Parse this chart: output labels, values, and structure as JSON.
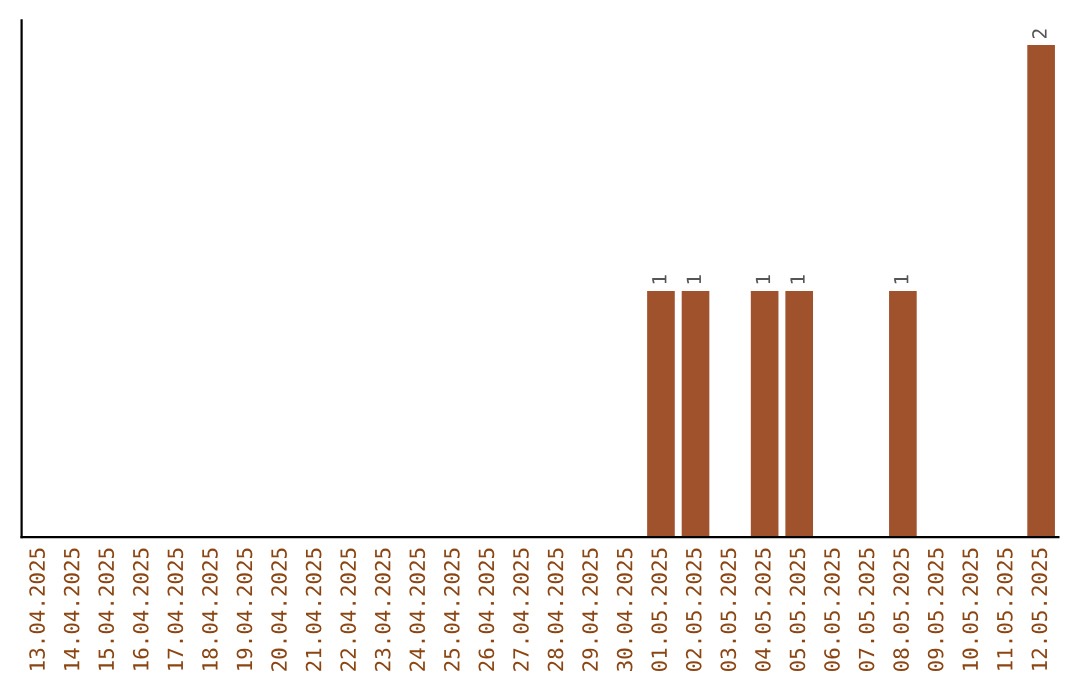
{
  "chart_data": {
    "type": "bar",
    "categories": [
      "13.04.2025",
      "14.04.2025",
      "15.04.2025",
      "16.04.2025",
      "17.04.2025",
      "18.04.2025",
      "19.04.2025",
      "20.04.2025",
      "21.04.2025",
      "22.04.2025",
      "23.04.2025",
      "24.04.2025",
      "25.04.2025",
      "26.04.2025",
      "27.04.2025",
      "28.04.2025",
      "29.04.2025",
      "30.04.2025",
      "01.05.2025",
      "02.05.2025",
      "03.05.2025",
      "04.05.2025",
      "05.05.2025",
      "06.05.2025",
      "07.05.2025",
      "08.05.2025",
      "09.05.2025",
      "10.05.2025",
      "11.05.2025",
      "12.05.2025"
    ],
    "values": [
      null,
      null,
      null,
      null,
      null,
      null,
      null,
      null,
      null,
      null,
      null,
      null,
      null,
      null,
      null,
      null,
      null,
      null,
      1,
      1,
      null,
      1,
      1,
      null,
      null,
      1,
      null,
      null,
      null,
      2
    ],
    "value_labels": [
      null,
      null,
      null,
      null,
      null,
      null,
      null,
      null,
      null,
      null,
      null,
      null,
      null,
      null,
      null,
      null,
      null,
      null,
      "1",
      "1",
      null,
      "1",
      "1",
      null,
      null,
      "1",
      null,
      null,
      null,
      "2"
    ],
    "color": "#a0522d",
    "tick_labels": "x",
    "grid": false
  }
}
